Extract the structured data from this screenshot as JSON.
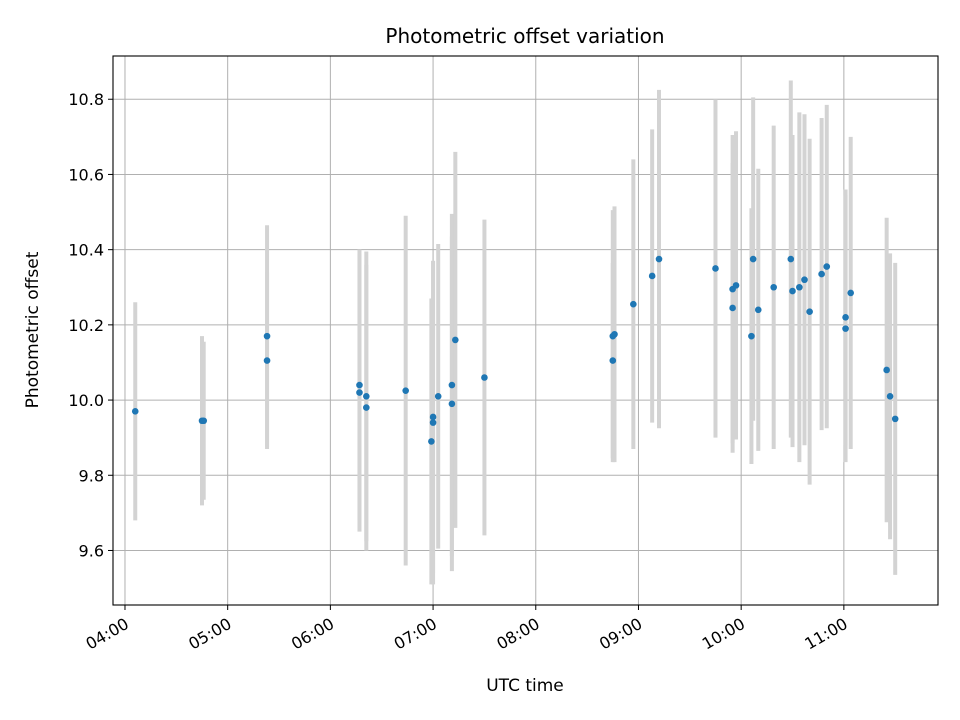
{
  "chart_data": {
    "type": "scatter",
    "title": "Photometric offset variation",
    "xlabel": "UTC time",
    "ylabel": "Photometric offset",
    "x_ticks": [
      "04:00",
      "05:00",
      "06:00",
      "07:00",
      "08:00",
      "09:00",
      "10:00",
      "11:00"
    ],
    "y_ticks": [
      "9.6",
      "9.8",
      "10.0",
      "10.2",
      "10.4",
      "10.6",
      "10.8"
    ],
    "xlim": [
      "03:53",
      "11:55"
    ],
    "ylim": [
      9.455,
      10.915
    ],
    "grid": true,
    "legend": "none",
    "colors": {
      "point": "#1f77b4",
      "errorbar": "#d3d3d3",
      "grid": "#b0b0b0"
    },
    "points": [
      {
        "x": "04:06",
        "y": 9.97,
        "err": 0.29
      },
      {
        "x": "04:45",
        "y": 9.945,
        "err": 0.225
      },
      {
        "x": "04:46",
        "y": 9.945,
        "err": 0.21
      },
      {
        "x": "05:23",
        "y": 10.17,
        "err": 0.295
      },
      {
        "x": "05:23",
        "y": 10.105,
        "err": 0.235
      },
      {
        "x": "06:17",
        "y": 10.04,
        "err": 0.36
      },
      {
        "x": "06:17",
        "y": 10.02,
        "err": 0.37
      },
      {
        "x": "06:21",
        "y": 10.01,
        "err": 0.385
      },
      {
        "x": "06:21",
        "y": 9.98,
        "err": 0.38
      },
      {
        "x": "06:44",
        "y": 10.025,
        "err": 0.465
      },
      {
        "x": "06:59",
        "y": 9.89,
        "err": 0.38
      },
      {
        "x": "07:00",
        "y": 9.955,
        "err": 0.415
      },
      {
        "x": "07:00",
        "y": 9.94,
        "err": 0.43
      },
      {
        "x": "07:03",
        "y": 10.01,
        "err": 0.405
      },
      {
        "x": "07:11",
        "y": 10.04,
        "err": 0.455
      },
      {
        "x": "07:11",
        "y": 9.99,
        "err": 0.445
      },
      {
        "x": "07:13",
        "y": 10.16,
        "err": 0.5
      },
      {
        "x": "07:30",
        "y": 10.06,
        "err": 0.42
      },
      {
        "x": "08:45",
        "y": 10.105,
        "err": 0.26
      },
      {
        "x": "08:45",
        "y": 10.17,
        "err": 0.335
      },
      {
        "x": "08:46",
        "y": 10.175,
        "err": 0.34
      },
      {
        "x": "08:57",
        "y": 10.255,
        "err": 0.385
      },
      {
        "x": "09:08",
        "y": 10.33,
        "err": 0.39
      },
      {
        "x": "09:12",
        "y": 10.375,
        "err": 0.45
      },
      {
        "x": "09:45",
        "y": 10.35,
        "err": 0.45
      },
      {
        "x": "09:55",
        "y": 10.245,
        "err": 0.385
      },
      {
        "x": "09:55",
        "y": 10.295,
        "err": 0.41
      },
      {
        "x": "09:57",
        "y": 10.305,
        "err": 0.41
      },
      {
        "x": "10:06",
        "y": 10.17,
        "err": 0.34
      },
      {
        "x": "10:07",
        "y": 10.375,
        "err": 0.43
      },
      {
        "x": "10:10",
        "y": 10.24,
        "err": 0.375
      },
      {
        "x": "10:19",
        "y": 10.3,
        "err": 0.43
      },
      {
        "x": "10:29",
        "y": 10.375,
        "err": 0.475
      },
      {
        "x": "10:30",
        "y": 10.29,
        "err": 0.415
      },
      {
        "x": "10:34",
        "y": 10.3,
        "err": 0.465
      },
      {
        "x": "10:37",
        "y": 10.32,
        "err": 0.44
      },
      {
        "x": "10:40",
        "y": 10.235,
        "err": 0.46
      },
      {
        "x": "10:47",
        "y": 10.335,
        "err": 0.415
      },
      {
        "x": "10:50",
        "y": 10.355,
        "err": 0.43
      },
      {
        "x": "11:01",
        "y": 10.19,
        "err": 0.355
      },
      {
        "x": "11:01",
        "y": 10.22,
        "err": 0.34
      },
      {
        "x": "11:04",
        "y": 10.285,
        "err": 0.415
      },
      {
        "x": "11:25",
        "y": 10.08,
        "err": 0.405
      },
      {
        "x": "11:27",
        "y": 10.01,
        "err": 0.38
      },
      {
        "x": "11:30",
        "y": 9.95,
        "err": 0.415
      }
    ]
  }
}
